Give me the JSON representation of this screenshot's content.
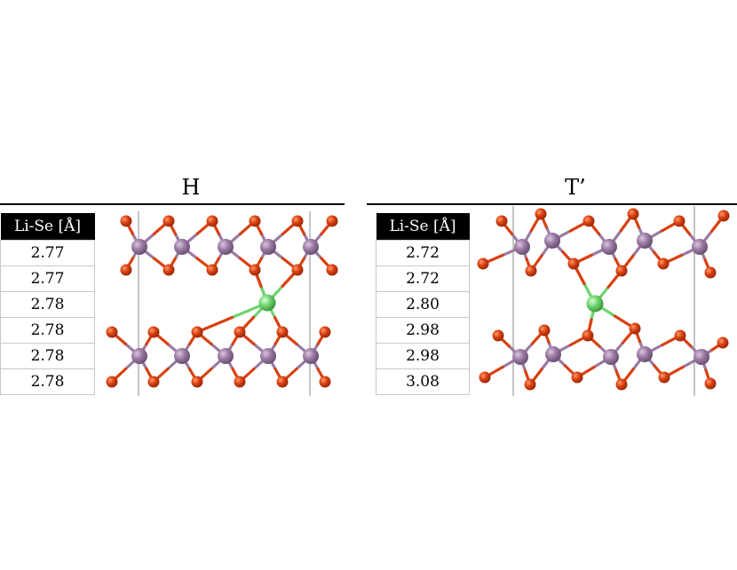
{
  "panels": [
    {
      "title": "H",
      "table_header": "Li-Se [Å]",
      "values": [
        "2.77",
        "2.77",
        "2.78",
        "2.78",
        "2.78",
        "2.78"
      ]
    },
    {
      "title": "T’",
      "table_header": "Li-Se [Å]",
      "values": [
        "2.72",
        "2.72",
        "2.80",
        "2.98",
        "2.98",
        "3.08"
      ]
    }
  ],
  "colors": {
    "metal": "#9a7aa3",
    "selenium": "#d94010",
    "lithium": "#6fd36f",
    "cell_line": "#888888"
  }
}
